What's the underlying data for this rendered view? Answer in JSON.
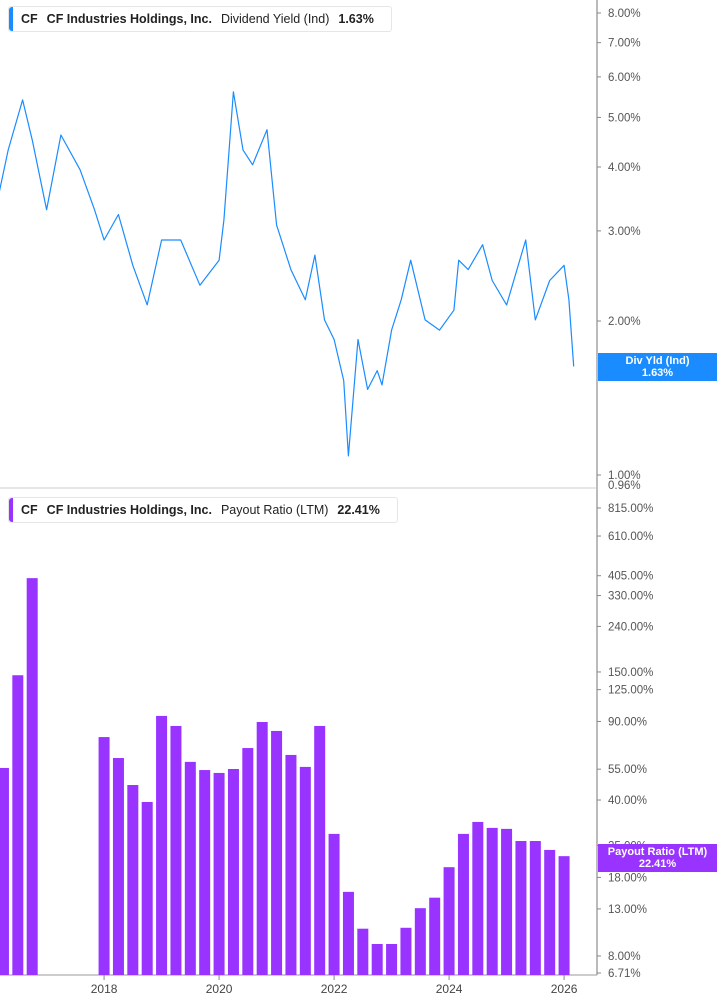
{
  "chart_data": [
    {
      "type": "line",
      "legend": {
        "ticker": "CF",
        "company": "CF Industries Holdings, Inc.",
        "metric": "Dividend Yield (Ind)",
        "value": "1.63%"
      },
      "badge": {
        "label": "Div Yld (Ind)",
        "value": "1.63%"
      },
      "color": "#1a8cff",
      "yscale": "log",
      "ylim": [
        0.96,
        8.5
      ],
      "ytick_values": [
        8,
        7,
        6,
        5,
        4,
        3,
        2,
        1
      ],
      "ytick_labels": [
        "8.00%",
        "7.00%",
        "6.00%",
        "5.00%",
        "4.00%",
        "3.00%",
        "2.00%",
        "1.00%"
      ],
      "ymin_label": "0.96%",
      "points": [
        [
          "2016-03",
          3.53
        ],
        [
          "2016-05",
          4.32
        ],
        [
          "2016-08",
          5.41
        ],
        [
          "2016-10",
          4.52
        ],
        [
          "2017-01",
          3.3
        ],
        [
          "2017-04",
          4.62
        ],
        [
          "2017-08",
          3.95
        ],
        [
          "2017-11",
          3.3
        ],
        [
          "2018-01",
          2.88
        ],
        [
          "2018-04",
          3.23
        ],
        [
          "2018-07",
          2.57
        ],
        [
          "2018-10",
          2.15
        ],
        [
          "2019-01",
          2.88
        ],
        [
          "2019-05",
          2.88
        ],
        [
          "2019-09",
          2.35
        ],
        [
          "2020-01",
          2.63
        ],
        [
          "2020-02",
          3.15
        ],
        [
          "2020-04",
          5.61
        ],
        [
          "2020-06",
          4.32
        ],
        [
          "2020-08",
          4.04
        ],
        [
          "2020-11",
          4.73
        ],
        [
          "2021-01",
          3.08
        ],
        [
          "2021-04",
          2.52
        ],
        [
          "2021-07",
          2.2
        ],
        [
          "2021-09",
          2.69
        ],
        [
          "2021-11",
          2.01
        ],
        [
          "2022-01",
          1.84
        ],
        [
          "2022-03",
          1.53
        ],
        [
          "2022-04",
          1.09
        ],
        [
          "2022-06",
          1.84
        ],
        [
          "2022-08",
          1.47
        ],
        [
          "2022-10",
          1.6
        ],
        [
          "2022-11",
          1.5
        ],
        [
          "2023-01",
          1.92
        ],
        [
          "2023-03",
          2.2
        ],
        [
          "2023-05",
          2.63
        ],
        [
          "2023-08",
          2.01
        ],
        [
          "2023-11",
          1.92
        ],
        [
          "2024-02",
          2.1
        ],
        [
          "2024-03",
          2.63
        ],
        [
          "2024-05",
          2.52
        ],
        [
          "2024-08",
          2.82
        ],
        [
          "2024-10",
          2.4
        ],
        [
          "2025-01",
          2.15
        ],
        [
          "2025-05",
          2.88
        ],
        [
          "2025-07",
          2.01
        ],
        [
          "2025-10",
          2.4
        ],
        [
          "2026-01",
          2.57
        ],
        [
          "2026-02",
          2.2
        ],
        [
          "2026-03",
          1.63
        ]
      ]
    },
    {
      "type": "bar",
      "legend": {
        "ticker": "CF",
        "company": "CF Industries Holdings, Inc.",
        "metric": "Payout Ratio (LTM)",
        "value": "22.41%"
      },
      "badge": {
        "label": "Payout Ratio (LTM)",
        "value": "22.41%"
      },
      "color": "#9933ff",
      "yscale": "log",
      "ylim": [
        6.71,
        1000
      ],
      "ytick_values": [
        815,
        610,
        405,
        330,
        240,
        150,
        125,
        90,
        55,
        40,
        25,
        18,
        13,
        8,
        6.71
      ],
      "ytick_labels": [
        "815.00%",
        "610.00%",
        "405.00%",
        "330.00%",
        "240.00%",
        "150.00%",
        "125.00%",
        "90.00%",
        "55.00%",
        "40.00%",
        "25.00%",
        "18.00%",
        "13.00%",
        "8.00%",
        "6.71%"
      ],
      "bars": [
        [
          "2016-04",
          55.7
        ],
        [
          "2016-07",
          145
        ],
        [
          "2016-10",
          395
        ],
        [
          "2018-01",
          76.6
        ],
        [
          "2018-04",
          61.7
        ],
        [
          "2018-07",
          46.7
        ],
        [
          "2018-10",
          39.2
        ],
        [
          "2019-01",
          95.3
        ],
        [
          "2019-04",
          85.9
        ],
        [
          "2019-07",
          59.3
        ],
        [
          "2019-10",
          54.5
        ],
        [
          "2020-01",
          52.9
        ],
        [
          "2020-04",
          55.1
        ],
        [
          "2020-07",
          68.4
        ],
        [
          "2020-10",
          89.5
        ],
        [
          "2021-01",
          81.6
        ],
        [
          "2021-04",
          63.7
        ],
        [
          "2021-07",
          56.3
        ],
        [
          "2021-10",
          85.9
        ],
        [
          "2022-01",
          28.2
        ],
        [
          "2022-04",
          15.5
        ],
        [
          "2022-07",
          10.6
        ],
        [
          "2022-10",
          9.05
        ],
        [
          "2023-01",
          9.05
        ],
        [
          "2023-04",
          10.7
        ],
        [
          "2023-07",
          13.1
        ],
        [
          "2023-10",
          14.6
        ],
        [
          "2024-01",
          20.0
        ],
        [
          "2024-04",
          28.2
        ],
        [
          "2024-07",
          31.9
        ],
        [
          "2024-10",
          30.0
        ],
        [
          "2025-01",
          29.7
        ],
        [
          "2025-04",
          26.2
        ],
        [
          "2025-07",
          26.2
        ],
        [
          "2025-10",
          23.9
        ],
        [
          "2026-01",
          22.41
        ]
      ]
    }
  ],
  "x_axis": {
    "tick_labels": [
      "2018",
      "2020",
      "2022",
      "2024",
      "2026"
    ]
  }
}
